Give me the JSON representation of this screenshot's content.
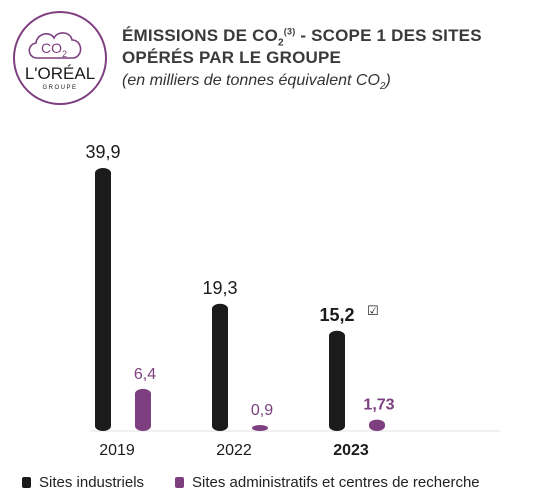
{
  "logo": {
    "badge_text": "CO",
    "badge_sub": "2",
    "brand": "L'ORÉAL",
    "brand_sub": "GROUPE"
  },
  "header": {
    "title_line1_a": "ÉMISSIONS DE CO",
    "title_line1_sub": "2",
    "title_line1_sup": "(3)",
    "title_line1_b": " - SCOPE 1 DES SITES",
    "title_line2": "OPÉRÉS PAR LE GROUPE",
    "subtitle_a": "(en milliers de tonnes équivalent CO",
    "subtitle_sub": "2",
    "subtitle_b": ")"
  },
  "colors": {
    "industrial": "#1b1b1b",
    "admin": "#7d3f7f",
    "logo_ring": "#7d3f7f"
  },
  "chart_data": {
    "type": "bar",
    "categories": [
      "2019",
      "2022",
      "2023"
    ],
    "category_bold": [
      false,
      false,
      true
    ],
    "series": [
      {
        "name": "Sites industriels",
        "values": [
          39.9,
          19.3,
          15.2
        ],
        "labels": [
          "39,9",
          "19,3",
          "15,2"
        ],
        "color": "#1b1b1b"
      },
      {
        "name": "Sites administratifs et centres de recherche",
        "values": [
          6.4,
          0.9,
          1.73
        ],
        "labels": [
          "6,4",
          "0,9",
          "1,73"
        ],
        "color": "#7d3f7f"
      }
    ],
    "verified_mark": {
      "category": "2023",
      "symbol": "☑"
    },
    "ylim": [
      0,
      39.9
    ],
    "grid": false,
    "legend": "bottom"
  }
}
